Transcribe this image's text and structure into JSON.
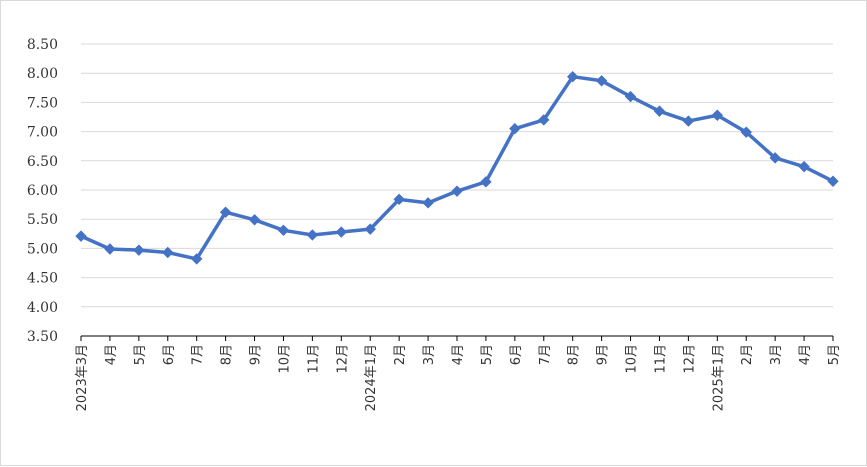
{
  "chart_data": {
    "type": "line",
    "title": "",
    "xlabel": "",
    "ylabel": "",
    "ylim": [
      3.5,
      8.5
    ],
    "y_ticks": [
      "3.50",
      "4.00",
      "4.50",
      "5.00",
      "5.50",
      "6.00",
      "6.50",
      "7.00",
      "7.50",
      "8.00",
      "8.50"
    ],
    "grid": "horizontal",
    "legend": "none",
    "categories": [
      "2023年3月",
      "4月",
      "5月",
      "6月",
      "7月",
      "8月",
      "9月",
      "10月",
      "11月",
      "12月",
      "2024年1月",
      "2月",
      "3月",
      "4月",
      "5月",
      "6月",
      "7月",
      "8月",
      "9月",
      "10月",
      "11月",
      "12月",
      "2025年1月",
      "2月",
      "3月",
      "4月",
      "5月"
    ],
    "series": [
      {
        "values": [
          5.21,
          4.99,
          4.97,
          4.93,
          4.82,
          5.62,
          5.49,
          5.31,
          5.23,
          5.28,
          5.33,
          5.84,
          5.78,
          5.98,
          6.14,
          7.05,
          7.2,
          7.94,
          7.87,
          7.6,
          7.35,
          7.18,
          7.28,
          6.99,
          6.55,
          6.4,
          6.15
        ],
        "color": "#4472c4",
        "marker": "diamond"
      }
    ],
    "colors": {
      "line": "#4472c4",
      "grid": "#d9d9d9",
      "axis": "#000000"
    }
  }
}
